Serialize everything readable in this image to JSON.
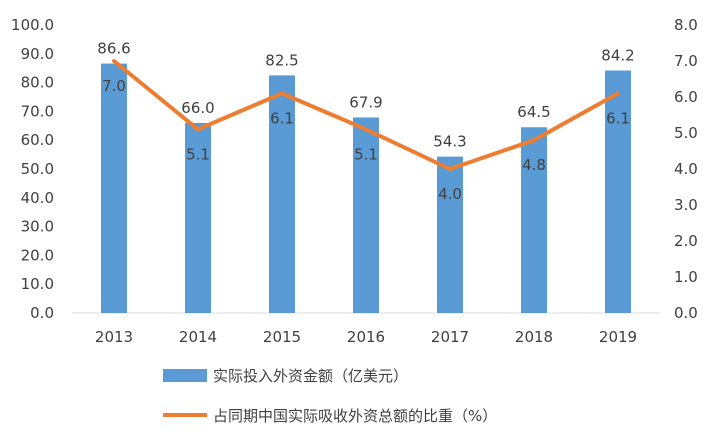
{
  "colors": {
    "bar": "#5B9BD5",
    "line": "#ED7D31",
    "text": "#404040"
  },
  "chart_data": {
    "type": "bar",
    "categories": [
      "2013",
      "2014",
      "2015",
      "2016",
      "2017",
      "2018",
      "2019"
    ],
    "series": [
      {
        "name": "实际投入外资金额（亿美元）",
        "type": "bar",
        "axis": "left",
        "values": [
          86.6,
          66.0,
          82.5,
          67.9,
          54.3,
          64.5,
          84.2
        ],
        "labels": [
          "86.6",
          "66.0",
          "82.5",
          "67.9",
          "54.3",
          "64.5",
          "84.2"
        ]
      },
      {
        "name": "占同期中国实际吸收外资总额的比重（%）",
        "type": "line",
        "axis": "right",
        "values": [
          7.0,
          5.1,
          6.1,
          5.1,
          4.0,
          4.8,
          6.1
        ],
        "labels": [
          "7.0",
          "5.1",
          "6.1",
          "5.1",
          "4.0",
          "4.8",
          "6.1"
        ]
      }
    ],
    "y_left": {
      "ylim": [
        0,
        100
      ],
      "ticks": [
        "0.0",
        "10.0",
        "20.0",
        "30.0",
        "40.0",
        "50.0",
        "60.0",
        "70.0",
        "80.0",
        "90.0",
        "100.0"
      ]
    },
    "y_right": {
      "ylim": [
        0,
        8
      ],
      "ticks": [
        "0.0",
        "1.0",
        "2.0",
        "3.0",
        "4.0",
        "5.0",
        "6.0",
        "7.0",
        "8.0"
      ]
    },
    "grid": false,
    "legend_position": "bottom"
  }
}
